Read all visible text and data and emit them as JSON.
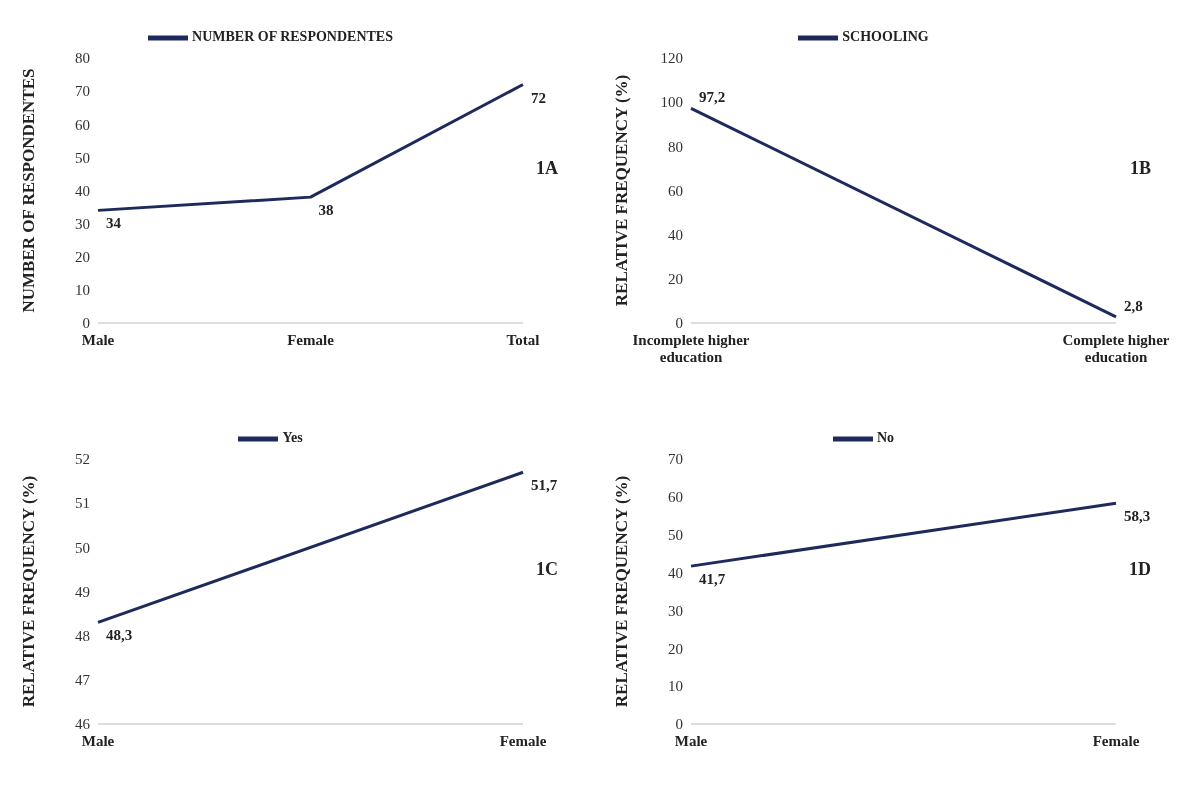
{
  "chart_data": [
    {
      "type": "line",
      "categories": [
        "Male",
        "Female",
        "Total"
      ],
      "ylabel": "NUMBER OF RESPONDENTES",
      "ylim": [
        0,
        80
      ],
      "yticks": [
        0,
        10,
        20,
        30,
        40,
        50,
        60,
        70,
        80
      ],
      "grid": false,
      "legend": "top",
      "marker": "none",
      "annotations": [
        "1A"
      ],
      "series": [
        {
          "name": "NUMBER OF RESPONDENTES",
          "color": "#1f2a5c",
          "values": [
            34,
            38,
            72
          ],
          "value_labels": [
            "34",
            "38",
            "72"
          ]
        }
      ]
    },
    {
      "type": "line",
      "categories": [
        "Incomplete higher education",
        "Complete higher education"
      ],
      "ylabel": "RELATIVE FREQUENCY (%)",
      "ylim": [
        0,
        120
      ],
      "yticks": [
        0,
        20,
        40,
        60,
        80,
        100,
        120
      ],
      "grid": false,
      "legend": "top",
      "marker": "none",
      "annotations": [
        "1B"
      ],
      "series": [
        {
          "name": "SCHOOLING",
          "color": "#1f2a5c",
          "values": [
            97.2,
            2.8
          ],
          "value_labels": [
            "97,2",
            "2,8"
          ]
        }
      ]
    },
    {
      "type": "line",
      "categories": [
        "Male",
        "Female"
      ],
      "ylabel": "RELATIVE FREQUENCY (%)",
      "ylim": [
        46,
        52
      ],
      "yticks": [
        46,
        47,
        48,
        49,
        50,
        51,
        52
      ],
      "grid": false,
      "legend": "top",
      "marker": "none",
      "annotations": [
        "1C"
      ],
      "series": [
        {
          "name": "Yes",
          "color": "#1f2a5c",
          "values": [
            48.3,
            51.7
          ],
          "value_labels": [
            "48,3",
            "51,7"
          ]
        }
      ]
    },
    {
      "type": "line",
      "categories": [
        "Male",
        "Female"
      ],
      "ylabel": "RELATIVE FREQUENCY (%)",
      "ylim": [
        0,
        70
      ],
      "yticks": [
        0,
        10,
        20,
        30,
        40,
        50,
        60,
        70
      ],
      "grid": false,
      "legend": "top",
      "marker": "none",
      "annotations": [
        "1D"
      ],
      "series": [
        {
          "name": "No",
          "color": "#1f2a5c",
          "values": [
            41.7,
            58.3
          ],
          "value_labels": [
            "41,7",
            "58,3"
          ]
        }
      ]
    }
  ]
}
